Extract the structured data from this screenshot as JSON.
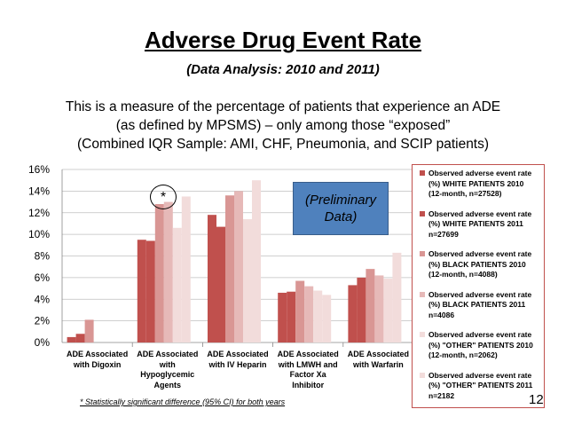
{
  "slide": {
    "title": "Adverse Drug Event Rate",
    "subtitle": "(Data Analysis: 2010 and 2011)",
    "description": [
      "This is a measure of the percentage of patients that experience an ADE",
      "(as defined by MPSMS) – only among those “exposed”",
      "(Combined IQR Sample: AMI, CHF, Pneumonia, and SCIP patients)"
    ],
    "prelim_label_1": "(Preliminary",
    "prelim_label_2": "Data)",
    "asterisk": "*",
    "footnote": "* Statistically significant difference (95% CI) for both years",
    "page_number": "12"
  },
  "chart_data": {
    "type": "bar",
    "categories": [
      "ADE Associated with Digoxin",
      "ADE Associated with Hypoglycemic Agents",
      "ADE Associated with IV Heparin",
      "ADE Associated with LMWH and Factor Xa Inhibitor",
      "ADE Associated with Warfarin"
    ],
    "category_lines": [
      [
        "ADE Associated",
        "with Digoxin"
      ],
      [
        "ADE Associated",
        "with",
        "Hypoglycemic",
        "Agents"
      ],
      [
        "ADE Associated",
        "with IV Heparin"
      ],
      [
        "ADE Associated",
        "with LMWH and",
        "Factor Xa",
        "Inhibitor"
      ],
      [
        "ADE Associated",
        "with Warfarin"
      ]
    ],
    "series": [
      {
        "name": "Observed adverse event rate (%) WHITE PATIENTS 2010 (12-month, n=27528)",
        "color": "#c0504d",
        "values": [
          0.5,
          9.5,
          11.8,
          4.6,
          5.3
        ]
      },
      {
        "name": "Observed adverse event rate (%) WHITE PATIENTS 2011 n=27699",
        "color": "#c0504d",
        "values": [
          0.8,
          9.4,
          10.7,
          4.7,
          6.0
        ]
      },
      {
        "name": "Observed adverse event rate (%) BLACK PATIENTS 2010 (12-month, n=4088)",
        "color": "#d99694",
        "values": [
          2.1,
          12.8,
          13.6,
          5.7,
          6.8
        ]
      },
      {
        "name": "Observed adverse event rate (%) BLACK PATIENTS 2011 n=4086",
        "color": "#e6b9b8",
        "values": [
          null,
          13.0,
          14.0,
          5.2,
          6.2
        ]
      },
      {
        "name": "Observed adverse event rate (%) \"OTHER\" PATIENTS 2010 (12-month, n=2062)",
        "color": "#f2dcdb",
        "values": [
          null,
          10.6,
          11.4,
          4.8,
          5.9
        ]
      },
      {
        "name": "Observed adverse event rate (%) \"OTHER\" PATIENTS 2011 n=2182",
        "color": "#f2dcdb",
        "values": [
          null,
          13.5,
          15.0,
          4.4,
          8.3
        ]
      }
    ],
    "legend_lines": [
      [
        "Observed adverse event rate",
        "(%) WHITE PATIENTS 2010",
        "(12-month, n=27528)"
      ],
      [
        "Observed adverse event rate",
        "(%) WHITE PATIENTS 2011",
        "n=27699"
      ],
      [
        "Observed adverse event rate",
        "(%) BLACK PATIENTS 2010",
        "(12-month, n=4088)"
      ],
      [
        "Observed adverse event rate",
        "(%) BLACK PATIENTS 2011",
        "n=4086"
      ],
      [
        "Observed adverse event rate",
        "(%) \"OTHER\" PATIENTS 2010",
        "(12-month, n=2062)"
      ],
      [
        "Observed adverse event rate",
        "(%) \"OTHER\" PATIENTS 2011",
        "n=2182"
      ]
    ],
    "yticks": [
      "0%",
      "2%",
      "4%",
      "6%",
      "8%",
      "10%",
      "12%",
      "14%",
      "16%"
    ],
    "ylim": [
      0,
      16
    ],
    "xlabel": "",
    "ylabel": "",
    "legend": "right",
    "grid": true
  }
}
